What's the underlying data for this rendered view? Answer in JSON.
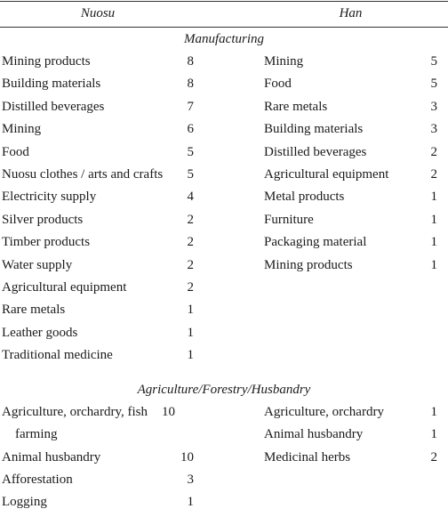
{
  "header": {
    "left": "Nuosu",
    "right": "Han"
  },
  "sections": [
    {
      "title": "Manufacturing",
      "left": [
        {
          "item": "Mining products",
          "count": 8
        },
        {
          "item": "Building materials",
          "count": 8
        },
        {
          "item": "Distilled beverages",
          "count": 7
        },
        {
          "item": "Mining",
          "count": 6
        },
        {
          "item": "Food",
          "count": 5
        },
        {
          "item": "Nuosu clothes / arts and crafts",
          "count": 5
        },
        {
          "item": "Electricity supply",
          "count": 4
        },
        {
          "item": "Silver products",
          "count": 2
        },
        {
          "item": "Timber products",
          "count": 2
        },
        {
          "item": "Water supply",
          "count": 2
        },
        {
          "item": "Agricultural equipment",
          "count": 2
        },
        {
          "item": "Rare metals",
          "count": 1
        },
        {
          "item": "Leather goods",
          "count": 1
        },
        {
          "item": "Traditional medicine",
          "count": 1
        }
      ],
      "right": [
        {
          "item": "Mining",
          "count": 5
        },
        {
          "item": "Food",
          "count": 5
        },
        {
          "item": "Rare metals",
          "count": 3
        },
        {
          "item": "Building materials",
          "count": 3
        },
        {
          "item": "Distilled beverages",
          "count": 2
        },
        {
          "item": "Agricultural equipment",
          "count": 2
        },
        {
          "item": "Metal products",
          "count": 1
        },
        {
          "item": "Furniture",
          "count": 1
        },
        {
          "item": "Packaging material",
          "count": 1
        },
        {
          "item": "Mining products",
          "count": 1
        }
      ]
    },
    {
      "title": "Agriculture/Forestry/Husbandry",
      "left": [
        {
          "item": "Agriculture, orchardry, fish farming",
          "count": 10
        },
        {
          "item": "Animal husbandry",
          "count": 10
        },
        {
          "item": "Afforestation",
          "count": 3
        },
        {
          "item": "Logging",
          "count": 1
        }
      ],
      "right": [
        {
          "item": "Agriculture, orchardry",
          "count": 1
        },
        {
          "item": "Animal husbandry",
          "count": 1
        },
        {
          "item": "Medicinal herbs",
          "count": 2
        }
      ]
    }
  ]
}
